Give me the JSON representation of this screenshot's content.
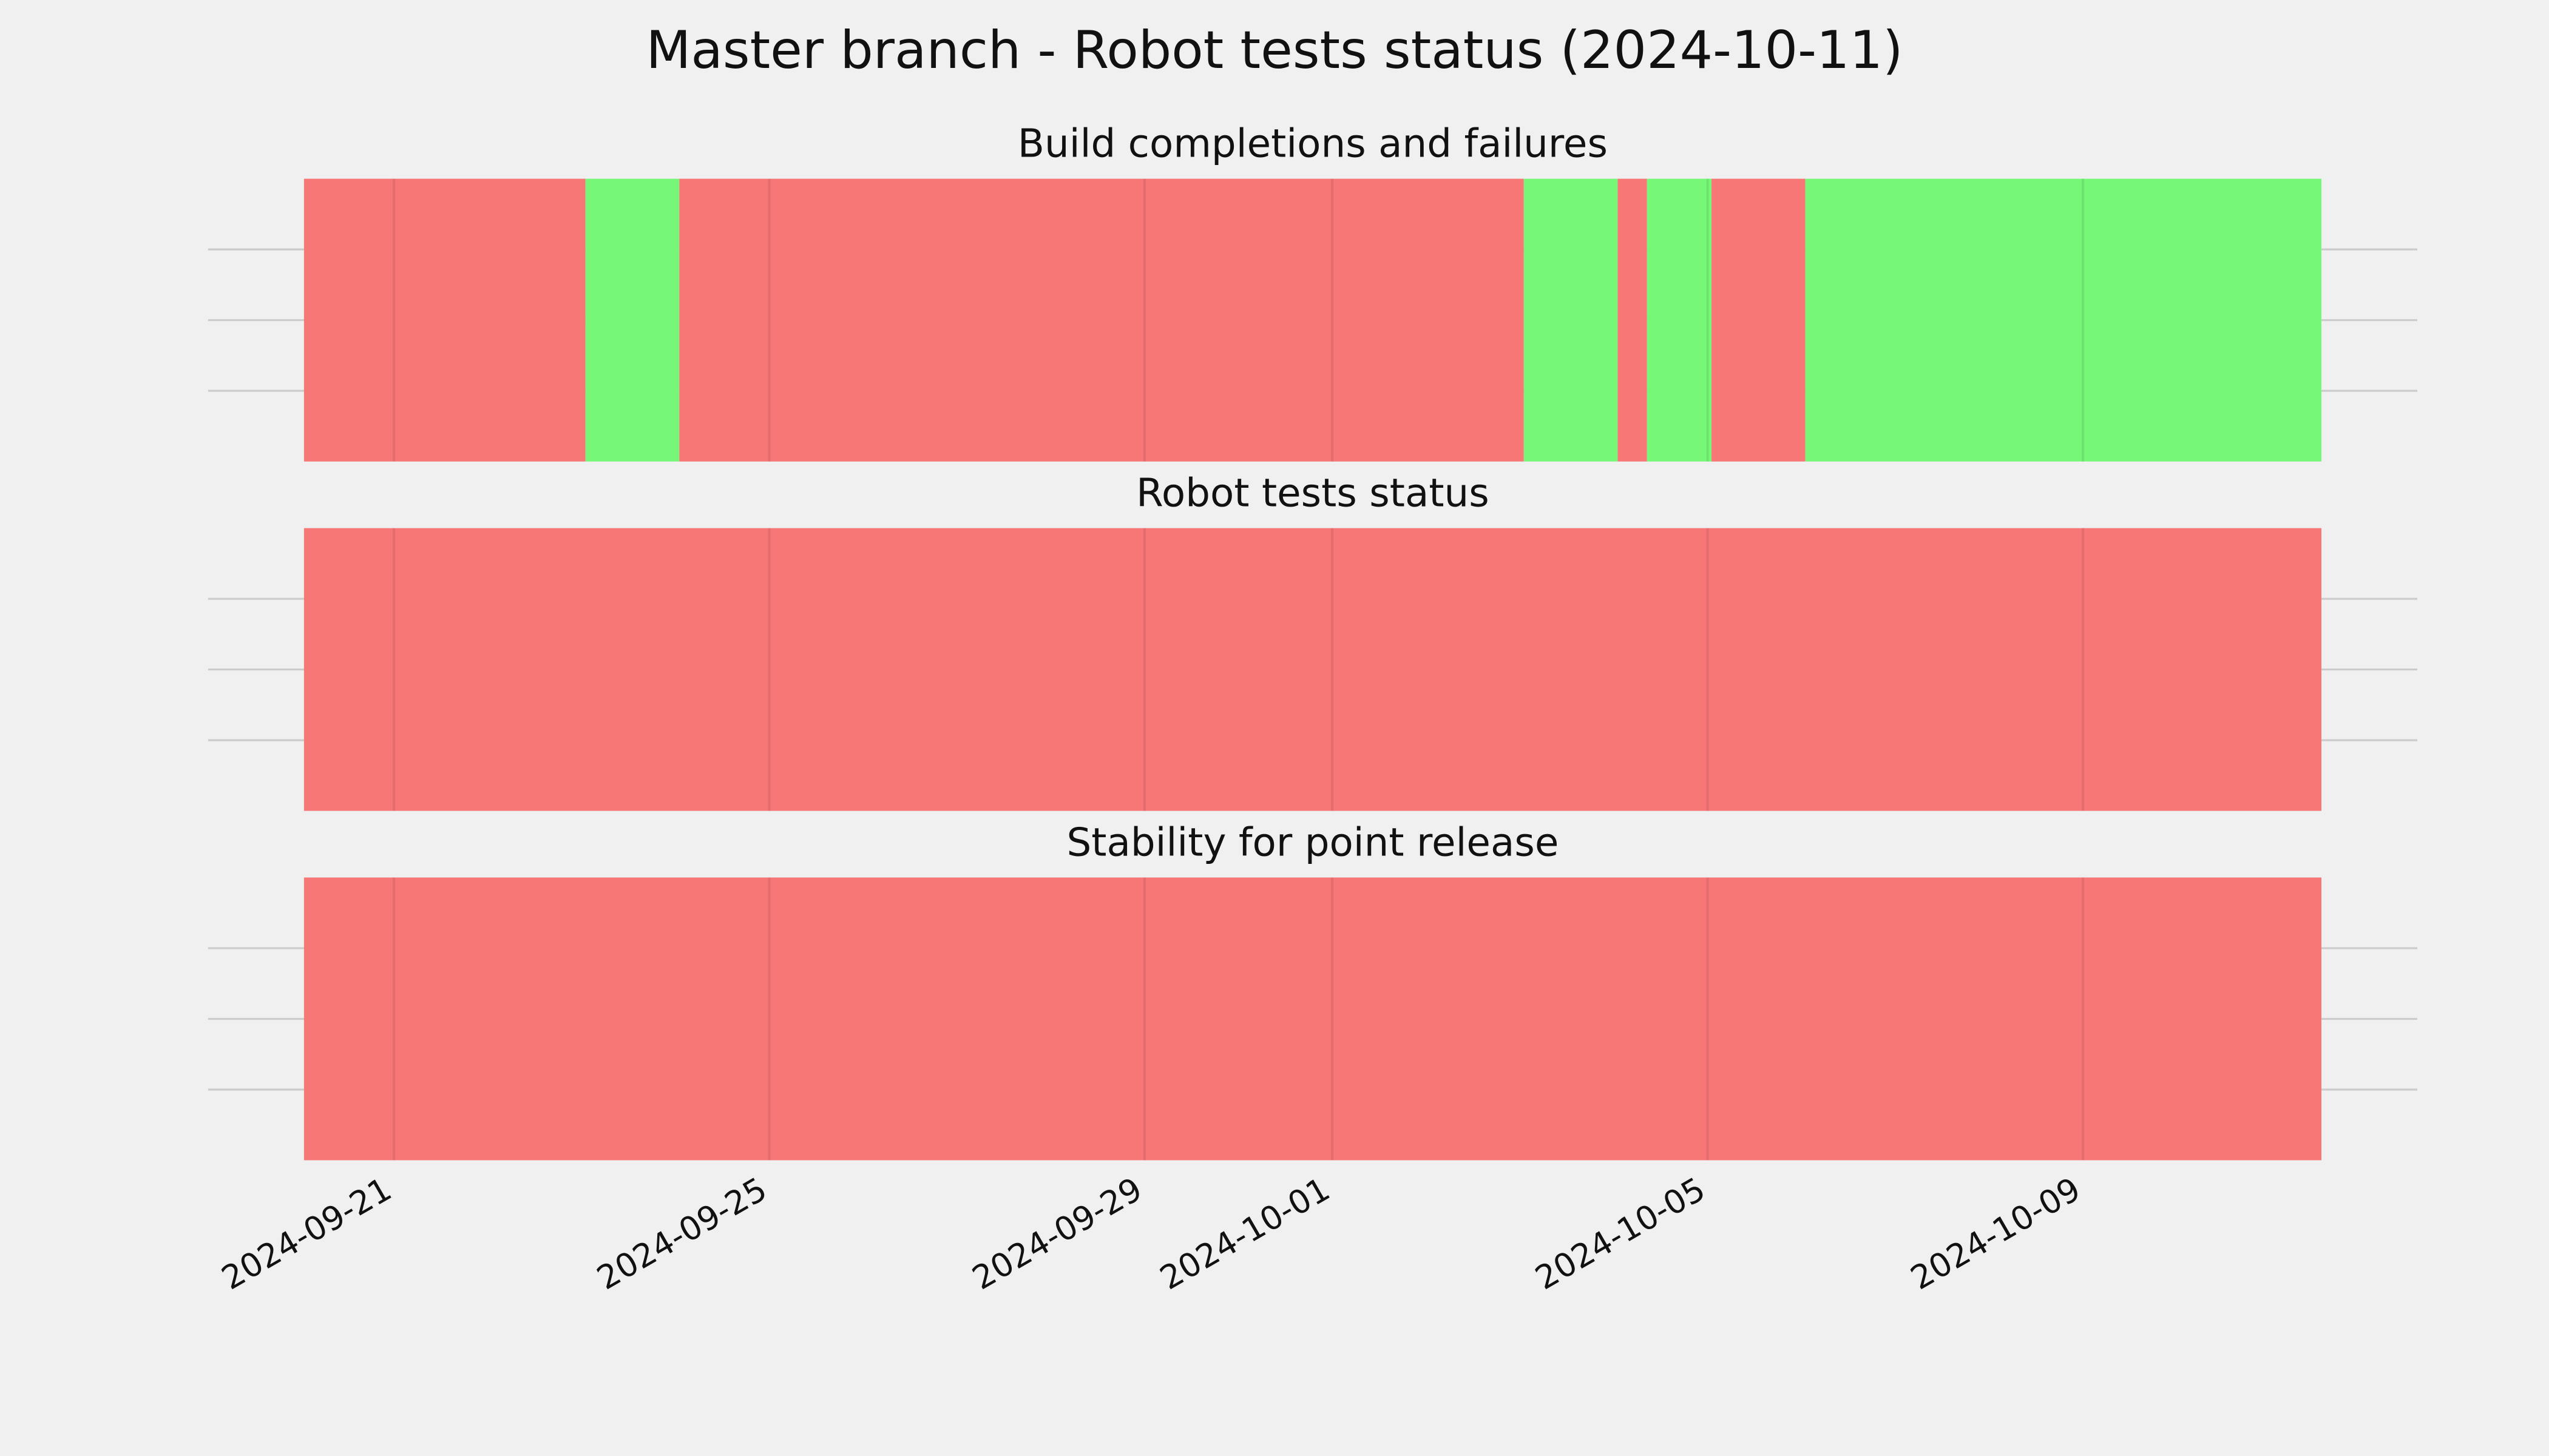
{
  "title": "Master branch - Robot tests status (2024-10-11)",
  "chart_data": [
    {
      "type": "timeline",
      "title": "Build completions and failures",
      "xlim": [
        "2024-09-20T01:00",
        "2024-10-11T13:00"
      ],
      "xticks": [
        "2024-09-21",
        "2024-09-25",
        "2024-09-29",
        "2024-10-01",
        "2024-10-05",
        "2024-10-09"
      ],
      "ylim": [
        0,
        1
      ],
      "yticks": [
        0.25,
        0.5,
        0.75
      ],
      "grid": true,
      "segments": [
        {
          "start": "2024-09-20T01:00",
          "end": "2024-09-23T01:00",
          "color": "#f77777"
        },
        {
          "start": "2024-09-23T01:00",
          "end": "2024-09-24T01:00",
          "color": "#77f777"
        },
        {
          "start": "2024-09-24T01:00",
          "end": "2024-10-03T01:00",
          "color": "#f77777"
        },
        {
          "start": "2024-10-03T01:00",
          "end": "2024-10-04T01:00",
          "color": "#77f777"
        },
        {
          "start": "2024-10-04T01:00",
          "end": "2024-10-04T08:30",
          "color": "#f77777"
        },
        {
          "start": "2024-10-04T08:30",
          "end": "2024-10-05T01:00",
          "color": "#77f777"
        },
        {
          "start": "2024-10-05T01:00",
          "end": "2024-10-06T01:00",
          "color": "#f77777"
        },
        {
          "start": "2024-10-06T01:00",
          "end": "2024-10-11T13:00",
          "color": "#77f777"
        }
      ]
    },
    {
      "type": "timeline",
      "title": "Robot tests status",
      "xlim": [
        "2024-09-20T01:00",
        "2024-10-11T13:00"
      ],
      "xticks": [
        "2024-09-21",
        "2024-09-25",
        "2024-09-29",
        "2024-10-01",
        "2024-10-05",
        "2024-10-09"
      ],
      "ylim": [
        0,
        1
      ],
      "yticks": [
        0.25,
        0.5,
        0.75
      ],
      "grid": true,
      "segments": [
        {
          "start": "2024-09-20T01:00",
          "end": "2024-10-11T13:00",
          "color": "#f77777"
        }
      ]
    },
    {
      "type": "timeline",
      "title": "Stability for point release",
      "xlim": [
        "2024-09-20T01:00",
        "2024-10-11T13:00"
      ],
      "xticks": [
        "2024-09-21",
        "2024-09-25",
        "2024-09-29",
        "2024-10-01",
        "2024-10-05",
        "2024-10-09"
      ],
      "ylim": [
        0,
        1
      ],
      "yticks": [
        0.25,
        0.5,
        0.75
      ],
      "grid": true,
      "segments": [
        {
          "start": "2024-09-20T01:00",
          "end": "2024-10-11T13:00",
          "color": "#f77777"
        }
      ]
    }
  ]
}
